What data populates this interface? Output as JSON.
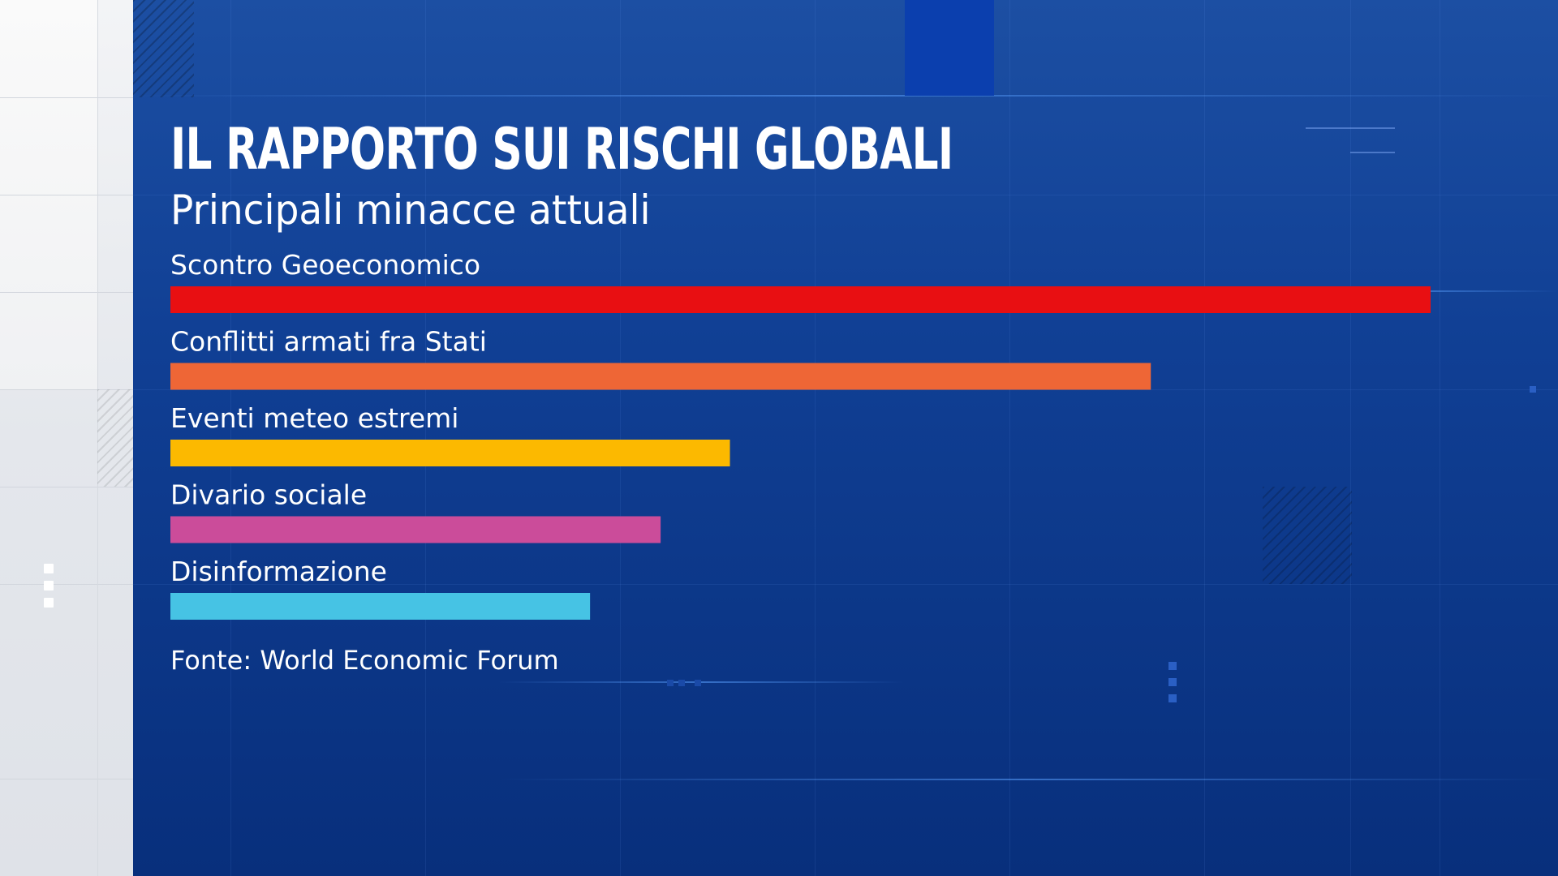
{
  "title": "IL RAPPORTO SUI RISCHI GLOBALI",
  "subtitle": "Principali minacce attuali",
  "source": "Fonte: World Economic Forum",
  "chart_data": {
    "type": "bar",
    "orientation": "horizontal",
    "categories": [
      "Scontro Geoeconomico",
      "Conflitti armati fra Stati",
      "Eventi meteo estremi",
      "Divario sociale",
      "Disinformazione"
    ],
    "values": [
      100,
      77.8,
      44.4,
      38.9,
      33.3
    ],
    "xlim": [
      0,
      100
    ],
    "colors": [
      "#e80f12",
      "#ee6636",
      "#fcb900",
      "#cb4c9a",
      "#46c3e4"
    ],
    "axes_visible": false,
    "grid": false,
    "legend": "none"
  }
}
